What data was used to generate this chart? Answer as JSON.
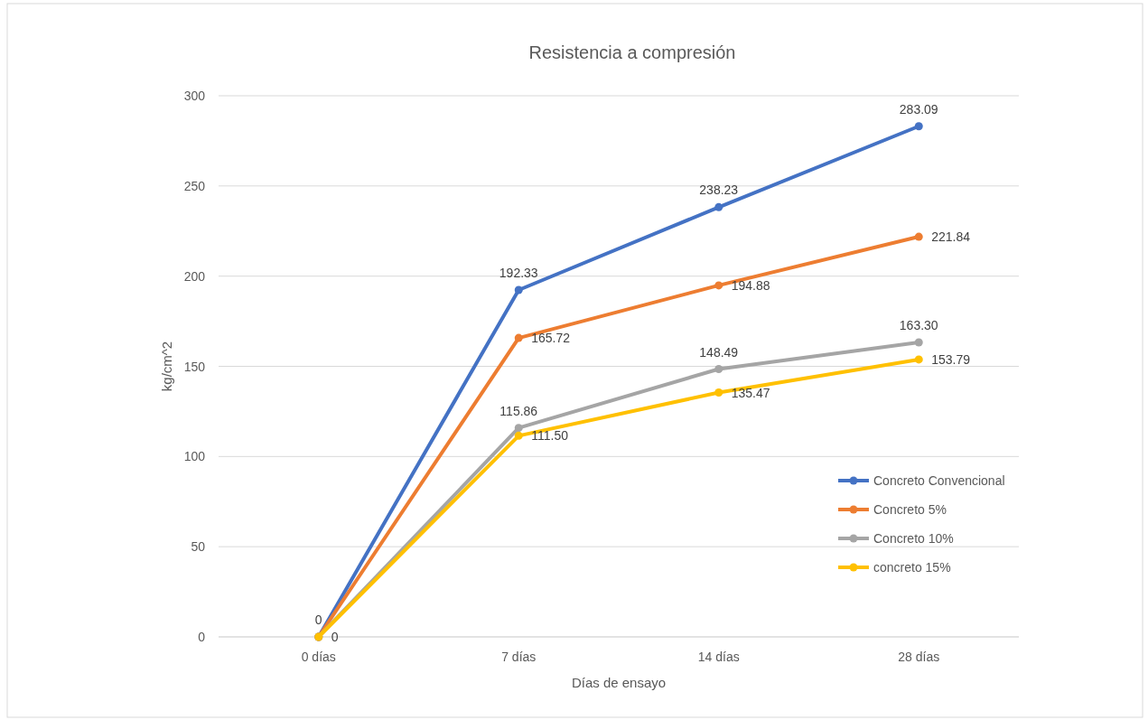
{
  "chart_data": {
    "type": "line",
    "title": "Resistencia a compresión",
    "xlabel": "Días de ensayo",
    "ylabel": "kg/cm^2",
    "categories": [
      "0 días",
      "7 días",
      "14 días",
      "28 días"
    ],
    "ylim": [
      0,
      300
    ],
    "yticks": [
      0,
      50,
      100,
      150,
      200,
      250,
      300
    ],
    "grid": "y",
    "legend": "right",
    "marker": "circle",
    "line_style": "solid",
    "series": [
      {
        "name": "Concreto Convencional",
        "color": "#4472c4",
        "values": [
          0,
          192.33,
          238.23,
          283.09
        ],
        "value_labels": [
          "0",
          "192.33",
          "238.23",
          "283.09"
        ]
      },
      {
        "name": "Concreto 5%",
        "color": "#ed7d31",
        "values": [
          0,
          165.72,
          194.88,
          221.84
        ],
        "value_labels": [
          "0",
          "165.72",
          "194.88",
          "221.84"
        ]
      },
      {
        "name": "Concreto 10%",
        "color": "#a5a5a5",
        "values": [
          0,
          115.86,
          148.49,
          163.3
        ],
        "value_labels": [
          null,
          "115.86",
          "148.49",
          "163.30"
        ]
      },
      {
        "name": "concreto 15%",
        "color": "#ffc000",
        "values": [
          0,
          111.5,
          135.47,
          153.79
        ],
        "value_labels": [
          null,
          "111.50",
          "135.47",
          "153.79"
        ]
      }
    ]
  }
}
